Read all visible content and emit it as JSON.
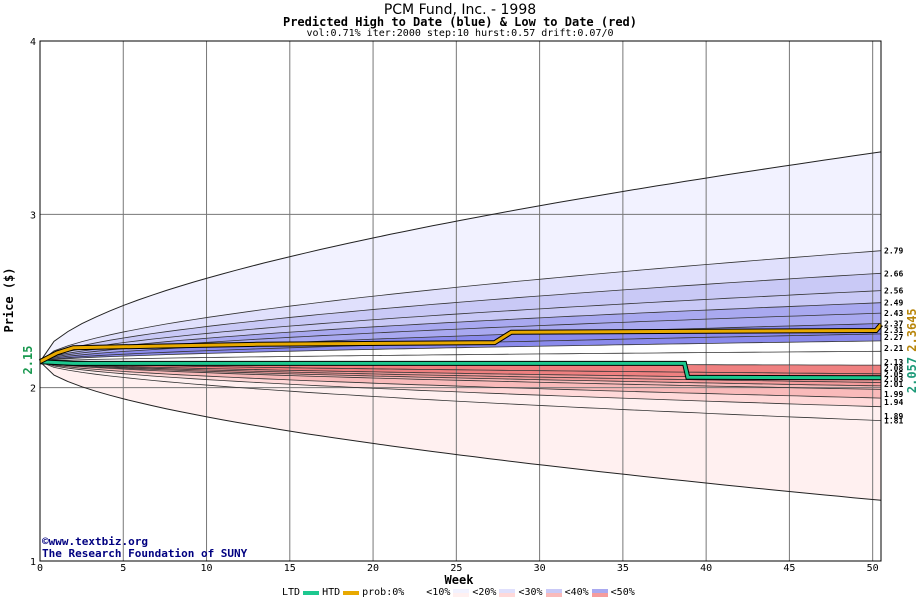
{
  "header": {
    "title": "PCM Fund, Inc. - 1998",
    "subtitle": "Predicted High to Date (blue) &  Low to Date (red)",
    "params": "vol:0.71% iter:2000 step:10 hurst:0.57 drift:0.07/0"
  },
  "credits": {
    "line1": "©www.textbiz.org",
    "line2": "The Research Foundation of SUNY"
  },
  "legend": {
    "ltd_label": "LTD",
    "htd_label": "HTD",
    "prob_label": "prob:0%",
    "bins": [
      "<10%",
      "<20%",
      "<30%",
      "<40%",
      "<50%"
    ]
  },
  "colors": {
    "htd": "#e8a900",
    "ltd": "#1dc88f",
    "blue_bands": [
      "#f2f2ff",
      "#e0e0fc",
      "#c9c9f6",
      "#a9a9f0",
      "#8a8aec"
    ],
    "red_bands": [
      "#fff0f0",
      "#ffd9d9",
      "#f9baba",
      "#f59c9c",
      "#ef8080"
    ]
  },
  "chart_data": {
    "type": "area",
    "xlabel": "Week",
    "ylabel": "Price ($)",
    "xlim": [
      0,
      50.5
    ],
    "ylim": [
      1,
      4
    ],
    "x_ticks": [
      0,
      5,
      10,
      15,
      20,
      25,
      30,
      35,
      40,
      45,
      50
    ],
    "y_ticks": [
      1,
      2,
      3,
      4
    ],
    "grid": true,
    "start_price_label": "2.15",
    "start_price": 2.15,
    "upper_band_labels": [
      "2.79",
      "2.66",
      "2.56",
      "2.49",
      "2.43",
      "2.37",
      "2.31",
      "2.27",
      "2.21"
    ],
    "lower_band_labels": [
      "2.13",
      "2.08",
      "2.05",
      "2.03",
      "2.01",
      "1.99",
      "1.94",
      "1.89",
      "1.81"
    ],
    "upper_bands": [
      3.36,
      2.79,
      2.66,
      2.56,
      2.49,
      2.43,
      2.37,
      2.31,
      2.27,
      2.21
    ],
    "lower_bands": [
      2.13,
      2.08,
      2.05,
      2.03,
      2.01,
      1.99,
      1.94,
      1.89,
      1.81,
      1.35
    ],
    "htd": {
      "label": "2.3645",
      "value": 2.3645,
      "points": [
        [
          0,
          2.15
        ],
        [
          1,
          2.2
        ],
        [
          2,
          2.23
        ],
        [
          7,
          2.24
        ],
        [
          13,
          2.25
        ],
        [
          27.3,
          2.26
        ],
        [
          28.3,
          2.32
        ],
        [
          50.2,
          2.33
        ],
        [
          50.5,
          2.3645
        ]
      ]
    },
    "ltd": {
      "label": "2.057",
      "value": 2.057,
      "points": [
        [
          0,
          2.15
        ],
        [
          2,
          2.14
        ],
        [
          38.7,
          2.14
        ],
        [
          38.9,
          2.06
        ],
        [
          50.5,
          2.057
        ]
      ]
    }
  }
}
